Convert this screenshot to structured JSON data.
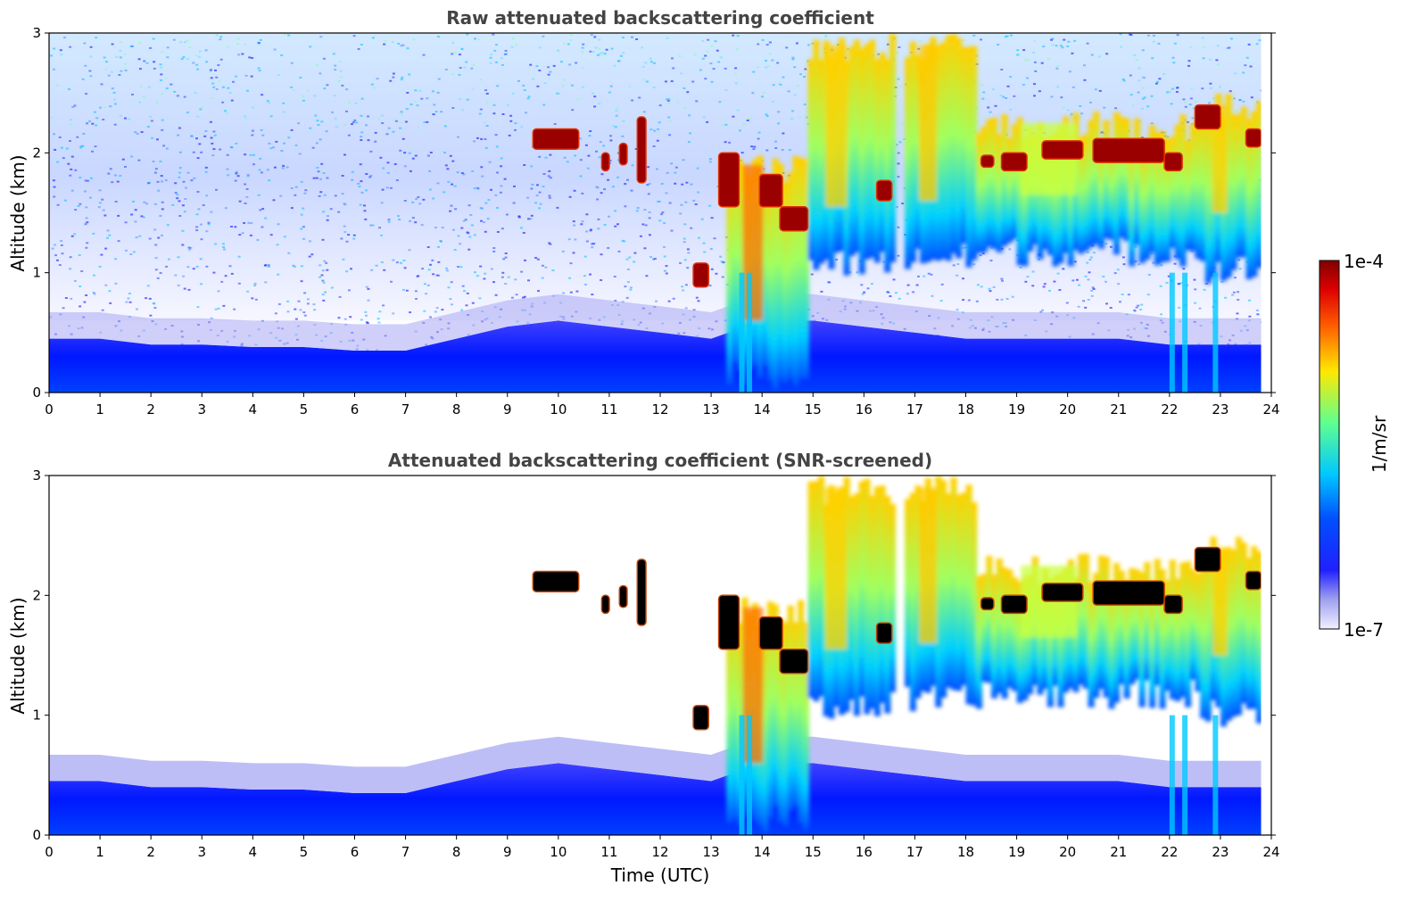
{
  "chart_data": [
    {
      "type": "heatmap",
      "title": "Raw attenuated backscattering coefficient",
      "xlabel": "",
      "ylabel": "Altitude (km)",
      "xlim": [
        0,
        24
      ],
      "ylim": [
        0,
        3
      ],
      "x_ticks": [
        "0",
        "1",
        "2",
        "3",
        "4",
        "5",
        "6",
        "7",
        "8",
        "9",
        "10",
        "11",
        "12",
        "13",
        "14",
        "15",
        "16",
        "17",
        "18",
        "19",
        "20",
        "21",
        "22",
        "23",
        "24"
      ],
      "y_ticks": [
        "0",
        "1",
        "2",
        "3"
      ],
      "variable": "attenuated backscatter",
      "screening": "none"
    },
    {
      "type": "heatmap",
      "title": "Attenuated backscattering coefficient (SNR-screened)",
      "xlabel": "Time (UTC)",
      "ylabel": "Altitude (km)",
      "xlim": [
        0,
        24
      ],
      "ylim": [
        0,
        3
      ],
      "x_ticks": [
        "0",
        "1",
        "2",
        "3",
        "4",
        "5",
        "6",
        "7",
        "8",
        "9",
        "10",
        "11",
        "12",
        "13",
        "14",
        "15",
        "16",
        "17",
        "18",
        "19",
        "20",
        "21",
        "22",
        "23",
        "24"
      ],
      "y_ticks": [
        "0",
        "1",
        "2",
        "3"
      ],
      "variable": "attenuated backscatter",
      "screening": "SNR"
    }
  ],
  "colorbar": {
    "label": "1/m/sr",
    "max_label": "1e-4",
    "min_label": "1e-7",
    "scale": "log",
    "colors": [
      "#e8e8f8",
      "#0000ff",
      "#00c8ff",
      "#7fff7f",
      "#ffe000",
      "#ff6000",
      "#800000"
    ]
  },
  "features": {
    "boundary_layer_top_km": [
      [
        0,
        0.45
      ],
      [
        1,
        0.45
      ],
      [
        2,
        0.4
      ],
      [
        3,
        0.4
      ],
      [
        4,
        0.38
      ],
      [
        5,
        0.38
      ],
      [
        6,
        0.35
      ],
      [
        7,
        0.35
      ],
      [
        8,
        0.45
      ],
      [
        9,
        0.55
      ],
      [
        10,
        0.6
      ],
      [
        11,
        0.55
      ],
      [
        12,
        0.5
      ],
      [
        13,
        0.45
      ],
      [
        14,
        0.6
      ],
      [
        15,
        0.6
      ],
      [
        16,
        0.55
      ],
      [
        17,
        0.5
      ],
      [
        18,
        0.45
      ],
      [
        19,
        0.45
      ],
      [
        20,
        0.45
      ],
      [
        21,
        0.45
      ],
      [
        22,
        0.4
      ],
      [
        23,
        0.4
      ],
      [
        23.8,
        0.4
      ]
    ],
    "strong_layers": [
      {
        "t0": 9.5,
        "t1": 10.4,
        "z0": 2.03,
        "z1": 2.2
      },
      {
        "t0": 10.85,
        "t1": 11.0,
        "z0": 1.85,
        "z1": 2.0
      },
      {
        "t0": 11.2,
        "t1": 11.35,
        "z0": 1.9,
        "z1": 2.08
      },
      {
        "t0": 11.55,
        "t1": 11.72,
        "z0": 1.75,
        "z1": 2.3
      },
      {
        "t0": 12.65,
        "t1": 12.95,
        "z0": 0.88,
        "z1": 1.08
      },
      {
        "t0": 13.15,
        "t1": 13.55,
        "z0": 1.55,
        "z1": 2.0
      },
      {
        "t0": 13.95,
        "t1": 14.4,
        "z0": 1.55,
        "z1": 1.82
      },
      {
        "t0": 14.35,
        "t1": 14.9,
        "z0": 1.35,
        "z1": 1.55
      },
      {
        "t0": 16.25,
        "t1": 16.55,
        "z0": 1.6,
        "z1": 1.77
      },
      {
        "t0": 18.3,
        "t1": 18.55,
        "z0": 1.88,
        "z1": 1.98
      },
      {
        "t0": 18.7,
        "t1": 19.2,
        "z0": 1.85,
        "z1": 2.0
      },
      {
        "t0": 19.5,
        "t1": 20.3,
        "z0": 1.95,
        "z1": 2.1
      },
      {
        "t0": 20.5,
        "t1": 21.9,
        "z0": 1.92,
        "z1": 2.12
      },
      {
        "t0": 21.9,
        "t1": 22.25,
        "z0": 1.85,
        "z1": 2.0
      },
      {
        "t0": 22.5,
        "t1": 23.0,
        "z0": 2.2,
        "z1": 2.4
      },
      {
        "t0": 23.5,
        "t1": 23.8,
        "z0": 2.05,
        "z1": 2.2
      }
    ],
    "cloud_columns": [
      {
        "t0": 13.3,
        "t1": 14.9,
        "top": 2.0,
        "base": 0.0,
        "core": "#ff7000"
      },
      {
        "t0": 14.9,
        "t1": 16.6,
        "top": 3.0,
        "base": 0.95,
        "core": "#ffd000"
      },
      {
        "t0": 16.8,
        "t1": 18.2,
        "top": 3.0,
        "base": 1.0,
        "core": "#ffc800"
      },
      {
        "t0": 18.2,
        "t1": 22.6,
        "top": 2.35,
        "base": 1.05,
        "core": "#c8ff40"
      },
      {
        "t0": 22.6,
        "t1": 23.8,
        "top": 2.5,
        "base": 0.9,
        "core": "#ffd000"
      }
    ]
  }
}
